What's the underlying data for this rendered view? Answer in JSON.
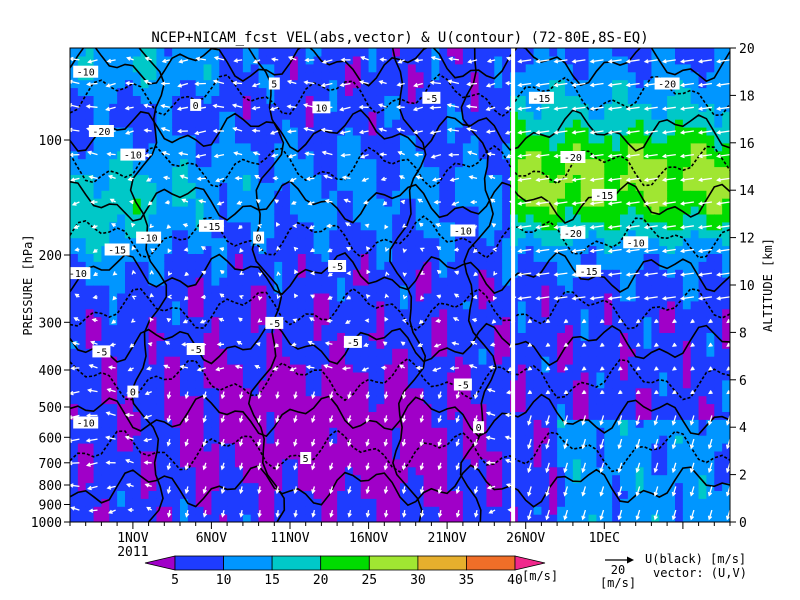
{
  "chart_data": {
    "type": "heatmap",
    "title": "NCEP+NICAM_fcst VEL(abs,vector) & U(contour)  (72-80E,8S-EQ)",
    "ylabel_left": "PRESSURE [hPa]",
    "ylabel_right": "ALTITUDE [km]",
    "x_ticks": [
      "1NOV",
      "6NOV",
      "11NOV",
      "16NOV",
      "21NOV",
      "26NOV",
      "1DEC"
    ],
    "x_year": "2011",
    "x_day_range": [
      -3,
      39
    ],
    "pressure_ticks": [
      100,
      200,
      300,
      400,
      500,
      600,
      700,
      800,
      900,
      1000
    ],
    "altitude_ticks": [
      0,
      2,
      4,
      6,
      8,
      10,
      12,
      14,
      16,
      18,
      20
    ],
    "forecast_start_day": 25.2,
    "colorbar": {
      "levels": [
        5,
        10,
        15,
        20,
        25,
        30,
        35,
        40
      ],
      "unit": "[m/s]",
      "colors": [
        "#a000c8",
        "#1e3cff",
        "#0096ff",
        "#00c8c8",
        "#00dc00",
        "#a0e632",
        "#e6af2d",
        "#f06e28",
        "#f0288c"
      ]
    },
    "vector_ref": {
      "value": "20",
      "unit": "[m/s]"
    },
    "legend_lines": [
      "U(black) [m/s]",
      "vector: (U,V)"
    ],
    "contour_labels": [
      "-20",
      "-15",
      "-10",
      "-5",
      "0",
      "5",
      "10"
    ]
  }
}
